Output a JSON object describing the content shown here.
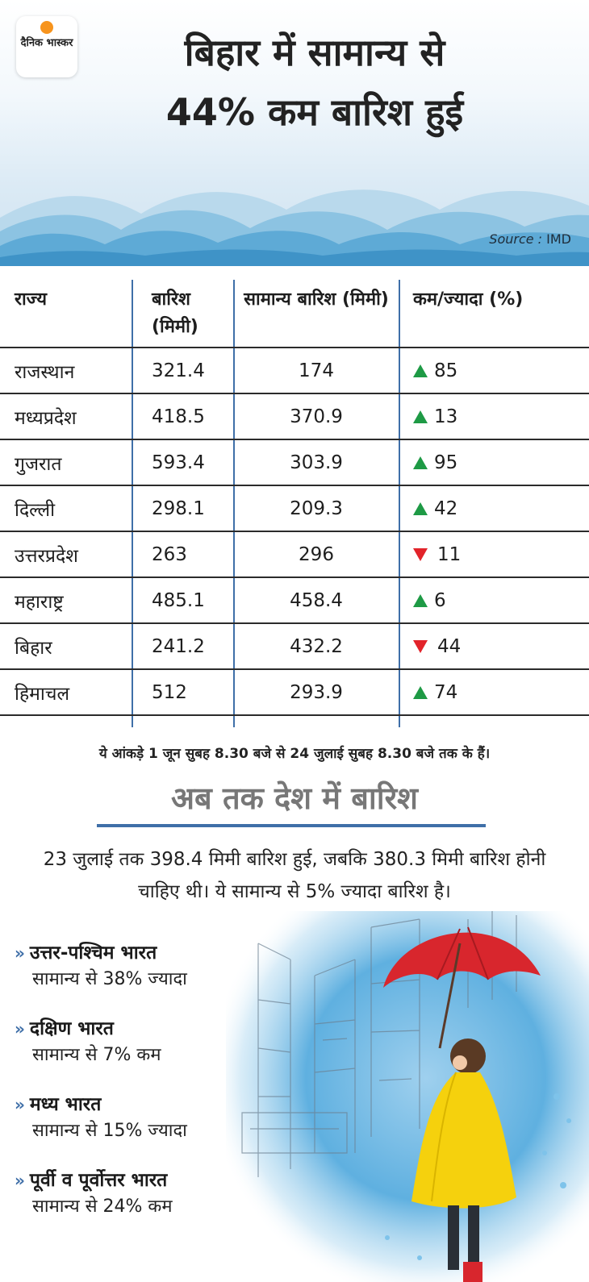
{
  "brand": {
    "logo_text": "दैनिक भास्कर"
  },
  "header": {
    "headline_line1": "बिहार में सामान्य से",
    "headline_line2": "44% कम बारिश हुई",
    "source_label": "Source :",
    "source_value": "IMD"
  },
  "table": {
    "headers": [
      "राज्य",
      "बारिश (मिमी)",
      "सामान्य बारिश (मिमी)",
      "कम/ज्यादा (%)"
    ],
    "rows": [
      {
        "state": "राजस्थान",
        "rain": "321.4",
        "normal": "174",
        "trend": "up",
        "diff": "85"
      },
      {
        "state": "मध्यप्रदेश",
        "rain": "418.5",
        "normal": "370.9",
        "trend": "up",
        "diff": "13"
      },
      {
        "state": "गुजरात",
        "rain": "593.4",
        "normal": "303.9",
        "trend": "up",
        "diff": "95"
      },
      {
        "state": "दिल्ली",
        "rain": "298.1",
        "normal": "209.3",
        "trend": "up",
        "diff": "42"
      },
      {
        "state": "उत्तरप्रदेश",
        "rain": "263",
        "normal": "296",
        "trend": "down",
        "diff": "11"
      },
      {
        "state": "महाराष्ट्र",
        "rain": "485.1",
        "normal": "458.4",
        "trend": "up",
        "diff": "6"
      },
      {
        "state": "बिहार",
        "rain": "241.2",
        "normal": "432.2",
        "trend": "down",
        "diff": "44"
      },
      {
        "state": "हिमाचल",
        "rain": "512",
        "normal": "293.9",
        "trend": "up",
        "diff": "74"
      }
    ],
    "colors": {
      "up": "#1e9a45",
      "down": "#e2232a",
      "divider": "#3f6fa8"
    }
  },
  "note": "ये आंकड़े 1 जून सुबह 8.30 बजे से 24 जुलाई सुबह 8.30 बजे तक के हैं।",
  "national": {
    "title": "अब तक देश में बारिश",
    "summary": "23 जुलाई तक 398.4 मिमी बारिश हुई, जबकि 380.3 मिमी बारिश होनी चाहिए थी। ये सामान्य से 5% ज्यादा बारिश है।",
    "regions": [
      {
        "name": "उत्तर-पश्चिम भारत",
        "stat": "सामान्य से 38% ज्यादा"
      },
      {
        "name": "दक्षिण भारत",
        "stat": "सामान्य से 7% कम"
      },
      {
        "name": "मध्य भारत",
        "stat": "सामान्य से 15% ज्यादा"
      },
      {
        "name": "पूर्वी व पूर्वोत्तर भारत",
        "stat": "सामान्य से 24% कम"
      }
    ]
  }
}
